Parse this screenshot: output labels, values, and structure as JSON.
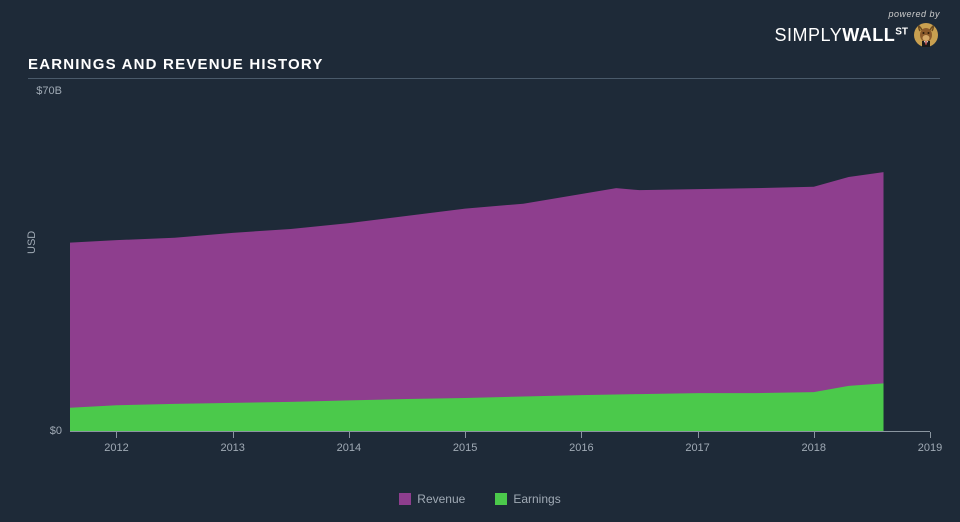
{
  "logo": {
    "powered": "powered by",
    "simply": "SIMPLY",
    "wall": "WALL",
    "st": "ST"
  },
  "chart": {
    "type": "area",
    "title": "EARNINGS AND REVENUE HISTORY",
    "title_fontsize": 15,
    "title_color": "#ffffff",
    "background_color": "#1e2a38",
    "axis_color": "#8a95a0",
    "label_color": "#a0aab5",
    "label_fontsize": 11,
    "y_label": "USD",
    "y_ticks": [
      {
        "value": 0,
        "label": "$0"
      },
      {
        "value": 70,
        "label": "$70B"
      }
    ],
    "ylim": [
      0,
      70
    ],
    "x_ticks": [
      2012,
      2013,
      2014,
      2015,
      2016,
      2017,
      2018,
      2019
    ],
    "xlim": [
      2011.6,
      2019
    ],
    "series": [
      {
        "name": "Revenue",
        "color": "#8e3e8e",
        "x": [
          2011.6,
          2012,
          2012.5,
          2013,
          2013.5,
          2014,
          2014.5,
          2015,
          2015.5,
          2016,
          2016.3,
          2016.5,
          2017,
          2017.5,
          2018,
          2018.3,
          2018.6
        ],
        "y": [
          39,
          39.5,
          40,
          41,
          41.8,
          43,
          44.5,
          46,
          47,
          49,
          50.2,
          49.8,
          50,
          50.2,
          50.5,
          52.5,
          53.5
        ]
      },
      {
        "name": "Earnings",
        "color": "#4bc94b",
        "x": [
          2011.6,
          2012,
          2012.5,
          2013,
          2013.5,
          2014,
          2014.5,
          2015,
          2015.5,
          2016,
          2016.5,
          2017,
          2017.5,
          2018,
          2018.3,
          2018.6
        ],
        "y": [
          5,
          5.5,
          5.8,
          6,
          6.2,
          6.5,
          6.8,
          7,
          7.3,
          7.6,
          7.8,
          8,
          8,
          8.2,
          9.5,
          10
        ]
      }
    ],
    "legend": [
      {
        "label": "Revenue",
        "color": "#8e3e8e"
      },
      {
        "label": "Earnings",
        "color": "#4bc94b"
      }
    ]
  }
}
